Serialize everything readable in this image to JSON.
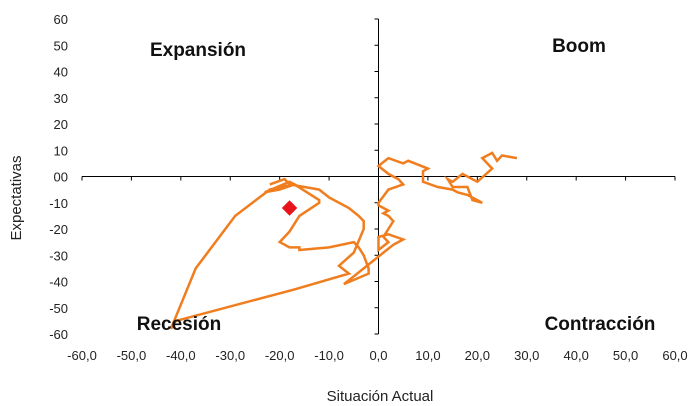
{
  "chart_data": {
    "type": "line",
    "title": "",
    "xlabel": "Situación Actual",
    "ylabel": "Expectativas",
    "xlim": [
      -60,
      60
    ],
    "ylim": [
      -60,
      60
    ],
    "x_ticks": [
      "-60,0",
      "-50,0",
      "-40,0",
      "-30,0",
      "-20,0",
      "-10,0",
      "0,0",
      "10,0",
      "20,0",
      "30,0",
      "40,0",
      "50,0",
      "60,0"
    ],
    "y_ticks": [
      "60",
      "50",
      "40",
      "30",
      "20",
      "10",
      "00",
      "-10",
      "-20",
      "-30",
      "-40",
      "-50",
      "-60"
    ],
    "grid": false,
    "legend": "none",
    "quadrant_labels": {
      "top_left": "Expansión",
      "top_right": "Boom",
      "bottom_left": "Recesión",
      "bottom_right": "Contracción"
    },
    "series": [
      {
        "color": "#f07d1e",
        "x": [
          28,
          25,
          24,
          23,
          21,
          23,
          20,
          17,
          15,
          14,
          15,
          18,
          19,
          21,
          20,
          18,
          16,
          15,
          12,
          9,
          9,
          10,
          6,
          5,
          2,
          0,
          2,
          4,
          5,
          2,
          0,
          0,
          2,
          1,
          2,
          3,
          2,
          1,
          2,
          0,
          0,
          2,
          5,
          3,
          1,
          -1,
          -3,
          -5,
          -7,
          -2,
          -2,
          -3,
          -4,
          -5,
          -10,
          -16,
          -16,
          -18,
          -20,
          -18,
          -16,
          -12,
          -12,
          -17,
          -20,
          -23,
          -18,
          -17,
          -22,
          -29,
          -37,
          -42,
          -41,
          -17,
          -6,
          -8,
          -5,
          -3,
          -3,
          -4,
          -6,
          -10,
          -12,
          -18,
          -19,
          -22
        ],
        "y": [
          7,
          8,
          6,
          9,
          7,
          3,
          -2,
          1,
          -2,
          -1,
          -4,
          -4,
          -9,
          -10,
          -9,
          -7,
          -6,
          -5,
          -4,
          -2,
          2,
          3,
          6,
          5,
          7,
          4,
          1,
          -1,
          -3,
          -5,
          -10,
          -11,
          -13,
          -14,
          -15,
          -17,
          -20,
          -23,
          -25,
          -28,
          -23,
          -22,
          -24,
          -26,
          -29,
          -32,
          -35,
          -38,
          -41,
          -37,
          -35,
          -30,
          -27,
          -25,
          -27,
          -28,
          -27,
          -27,
          -25,
          -21,
          -15,
          -10,
          -9,
          -3,
          -5,
          -6,
          -2,
          -3,
          -5,
          -15,
          -35,
          -58,
          -55,
          -43,
          -37,
          -34,
          -29,
          -20,
          -17,
          -15,
          -12,
          -8,
          -5,
          -3,
          -1,
          -3
        ]
      }
    ],
    "highlight_point": {
      "x": -18,
      "y": -12,
      "color": "#e8141c",
      "marker": "diamond"
    }
  }
}
